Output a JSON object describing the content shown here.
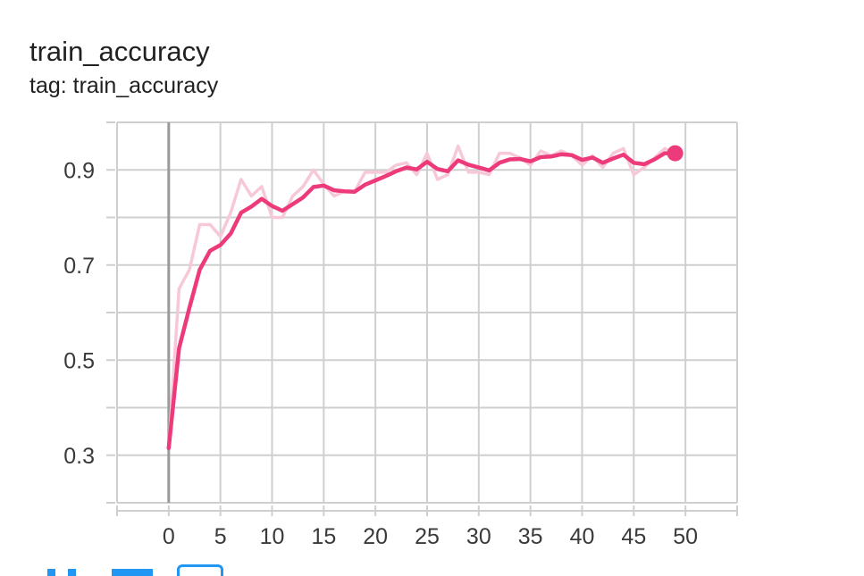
{
  "card": {
    "title": "train_accuracy",
    "tag_label": "tag: train_accuracy"
  },
  "colors": {
    "series": "#ec3a7a",
    "series_raw": "#f7c8d8",
    "grid": "#cfcfcf",
    "zero_axis": "#9a9a9a",
    "text": "#212121",
    "toolbar": "#2196f3"
  },
  "toolbar": {
    "icons": [
      "fullscreen-icon",
      "data-download-icon",
      "fit-domain-icon"
    ]
  },
  "chart_data": {
    "type": "line",
    "title": "train_accuracy",
    "xlim": [
      -5,
      55
    ],
    "ylim": [
      0.2,
      1.0
    ],
    "x_ticks": [
      0,
      5,
      10,
      15,
      20,
      25,
      30,
      35,
      40,
      45,
      50
    ],
    "x_tick_labels": [
      "0",
      "5",
      "10",
      "15",
      "20",
      "25",
      "30",
      "35",
      "40",
      "45",
      "50"
    ],
    "y_ticks": [
      0.3,
      0.5,
      0.7,
      0.9
    ],
    "y_tick_labels": [
      "0.3",
      "0.5",
      "0.7",
      "0.9"
    ],
    "grid": true,
    "series": [
      {
        "role": "raw",
        "x": [
          0,
          1,
          2,
          3,
          4,
          5,
          6,
          7,
          8,
          9,
          10,
          11,
          12,
          13,
          14,
          15,
          16,
          17,
          18,
          19,
          20,
          21,
          22,
          23,
          24,
          25,
          26,
          27,
          28,
          29,
          30,
          31,
          32,
          33,
          34,
          35,
          36,
          37,
          38,
          39,
          40,
          41,
          42,
          43,
          44,
          45,
          46,
          47,
          48,
          49
        ],
        "values": [
          0.315,
          0.65,
          0.69,
          0.785,
          0.785,
          0.76,
          0.81,
          0.88,
          0.845,
          0.865,
          0.8,
          0.8,
          0.845,
          0.865,
          0.9,
          0.87,
          0.845,
          0.855,
          0.855,
          0.895,
          0.895,
          0.895,
          0.91,
          0.915,
          0.89,
          0.935,
          0.88,
          0.89,
          0.95,
          0.895,
          0.895,
          0.89,
          0.935,
          0.935,
          0.925,
          0.91,
          0.94,
          0.93,
          0.94,
          0.93,
          0.91,
          0.93,
          0.905,
          0.935,
          0.945,
          0.89,
          0.905,
          0.925,
          0.945,
          0.935
        ]
      },
      {
        "role": "smoothed",
        "x": [
          0,
          1,
          2,
          3,
          4,
          5,
          6,
          7,
          8,
          9,
          10,
          11,
          12,
          13,
          14,
          15,
          16,
          17,
          18,
          19,
          20,
          21,
          22,
          23,
          24,
          25,
          26,
          27,
          28,
          29,
          30,
          31,
          32,
          33,
          34,
          35,
          36,
          37,
          38,
          39,
          40,
          41,
          42,
          43,
          44,
          45,
          46,
          47,
          48,
          49
        ],
        "values": [
          0.315,
          0.525,
          0.61,
          0.69,
          0.73,
          0.742,
          0.766,
          0.81,
          0.823,
          0.839,
          0.824,
          0.814,
          0.828,
          0.842,
          0.864,
          0.867,
          0.857,
          0.855,
          0.854,
          0.869,
          0.878,
          0.887,
          0.897,
          0.905,
          0.901,
          0.917,
          0.902,
          0.897,
          0.92,
          0.911,
          0.905,
          0.899,
          0.915,
          0.922,
          0.923,
          0.918,
          0.927,
          0.928,
          0.933,
          0.931,
          0.921,
          0.926,
          0.915,
          0.924,
          0.932,
          0.915,
          0.912,
          0.922,
          0.935,
          0.935
        ]
      }
    ]
  }
}
